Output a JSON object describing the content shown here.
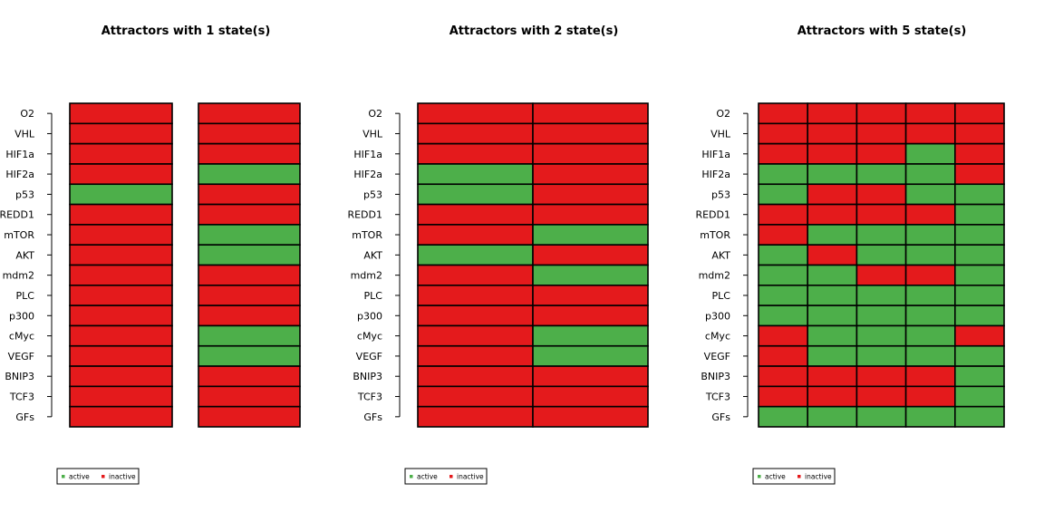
{
  "chart_data": [
    {
      "type": "heatmap",
      "title": "Attractors with 1 state(s)",
      "genes": [
        "O2",
        "VHL",
        "HIF1a",
        "HIF2a",
        "p53",
        "REDD1",
        "mTOR",
        "AKT",
        "mdm2",
        "PLC",
        "p300",
        "cMyc",
        "VEGF",
        "BNIP3",
        "TCF3",
        "GFs"
      ],
      "attractors": [
        [
          [
            0,
            0,
            0,
            0,
            1,
            0,
            0,
            0,
            0,
            0,
            0,
            0,
            0,
            0,
            0,
            0
          ]
        ],
        [
          [
            0,
            0,
            0,
            1,
            0,
            0,
            1,
            1,
            0,
            0,
            0,
            1,
            1,
            0,
            0,
            0
          ]
        ]
      ],
      "legend": [
        {
          "label": "active",
          "value": 1
        },
        {
          "label": "inactive",
          "value": 0
        }
      ]
    },
    {
      "type": "heatmap",
      "title": "Attractors with 2 state(s)",
      "genes": [
        "O2",
        "VHL",
        "HIF1a",
        "HIF2a",
        "p53",
        "REDD1",
        "mTOR",
        "AKT",
        "mdm2",
        "PLC",
        "p300",
        "cMyc",
        "VEGF",
        "BNIP3",
        "TCF3",
        "GFs"
      ],
      "attractors": [
        [
          [
            0,
            0,
            0,
            1,
            1,
            0,
            0,
            1,
            0,
            0,
            0,
            0,
            0,
            0,
            0,
            0
          ],
          [
            0,
            0,
            0,
            0,
            0,
            0,
            1,
            0,
            1,
            0,
            0,
            1,
            1,
            0,
            0,
            0
          ]
        ]
      ],
      "legend": [
        {
          "label": "active",
          "value": 1
        },
        {
          "label": "inactive",
          "value": 0
        }
      ]
    },
    {
      "type": "heatmap",
      "title": "Attractors with 5 state(s)",
      "genes": [
        "O2",
        "VHL",
        "HIF1a",
        "HIF2a",
        "p53",
        "REDD1",
        "mTOR",
        "AKT",
        "mdm2",
        "PLC",
        "p300",
        "cMyc",
        "VEGF",
        "BNIP3",
        "TCF3",
        "GFs"
      ],
      "attractors": [
        [
          [
            0,
            0,
            0,
            1,
            1,
            0,
            0,
            1,
            1,
            1,
            1,
            0,
            0,
            0,
            0,
            1
          ],
          [
            0,
            0,
            0,
            1,
            0,
            0,
            1,
            0,
            1,
            1,
            1,
            1,
            1,
            0,
            0,
            1
          ],
          [
            0,
            0,
            0,
            1,
            0,
            0,
            1,
            1,
            0,
            1,
            1,
            1,
            1,
            0,
            0,
            1
          ],
          [
            0,
            0,
            1,
            1,
            1,
            0,
            1,
            1,
            0,
            1,
            1,
            1,
            1,
            0,
            0,
            1
          ],
          [
            0,
            0,
            0,
            0,
            1,
            1,
            1,
            1,
            1,
            1,
            1,
            0,
            1,
            1,
            1,
            1
          ]
        ]
      ],
      "legend": [
        {
          "label": "active",
          "value": 1
        },
        {
          "label": "inactive",
          "value": 0
        }
      ]
    }
  ],
  "colors": {
    "active": "#4daf4a",
    "inactive": "#e41a1c",
    "border": "#000000"
  }
}
